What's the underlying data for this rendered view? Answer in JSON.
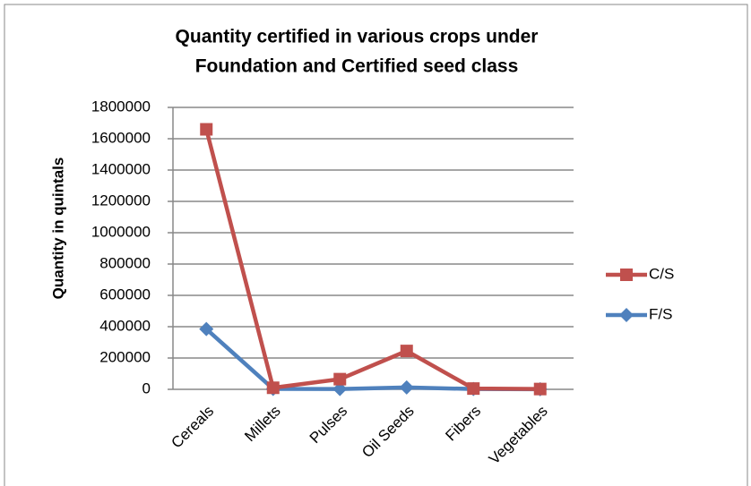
{
  "chart_data": {
    "type": "line",
    "title": [
      "Quantity certified in various crops under",
      "Foundation and Certified seed class"
    ],
    "y_label": "Quantity in quintals",
    "categories": [
      "Cereals",
      "Millets",
      "Pulses",
      "Oil Seeds",
      "Fibers",
      "Vegetables"
    ],
    "series": [
      {
        "name": "C/S",
        "color": "#c0504d",
        "marker": "square",
        "values": [
          1660000,
          10000,
          65000,
          245000,
          5000,
          2000
        ]
      },
      {
        "name": "F/S",
        "color": "#4f81bd",
        "marker": "diamond",
        "values": [
          385000,
          3000,
          2000,
          12000,
          2000,
          1000
        ]
      }
    ],
    "ylim": [
      0,
      1800000
    ],
    "yticks": [
      0,
      200000,
      400000,
      600000,
      800000,
      1000000,
      1200000,
      1400000,
      1600000,
      1800000
    ],
    "grid": true,
    "legend": "right"
  }
}
